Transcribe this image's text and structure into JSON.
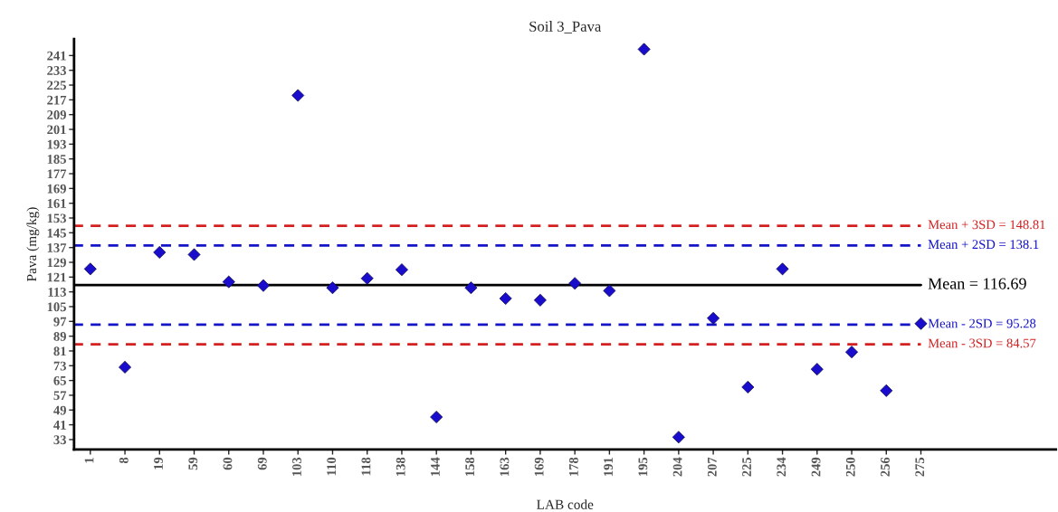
{
  "chart_data": {
    "type": "scatter",
    "title": "Soil 3_Pava",
    "xlabel": "LAB code",
    "ylabel": "Pava (mg/kg)",
    "categories": [
      "1",
      "8",
      "19",
      "59",
      "60",
      "69",
      "103",
      "110",
      "118",
      "138",
      "144",
      "158",
      "163",
      "169",
      "178",
      "191",
      "195",
      "204",
      "207",
      "225",
      "234",
      "249",
      "250",
      "256",
      "275"
    ],
    "series": [
      {
        "color": "#1a0ccc",
        "values": [
          125.4,
          72.2,
          134.4,
          133.2,
          118.4,
          116.4,
          219.4,
          115.2,
          120.3,
          125.0,
          45.2,
          115.2,
          109.4,
          108.5,
          117.6,
          113.6,
          244.4,
          34.3,
          98.7,
          61.4,
          125.4,
          71.1,
          80.4,
          59.5,
          95.8
        ]
      }
    ],
    "marker": "diamond",
    "grid": false,
    "legend": false,
    "ylim": [
      27.6,
      250
    ],
    "yticks": [
      33,
      41,
      49,
      57,
      65,
      73,
      81,
      89,
      97,
      105,
      113,
      121,
      129,
      137,
      145,
      153,
      161,
      169,
      177,
      185,
      193,
      201,
      209,
      217,
      225,
      233,
      241
    ],
    "ref_lines": [
      {
        "axis": "y",
        "value": 148.81,
        "label": "Mean + 3SD = 148.81",
        "color": "#d42020",
        "line_style": "dashed"
      },
      {
        "axis": "y",
        "value": 138.1,
        "label": "Mean + 2SD = 138.1",
        "color": "#1414c8",
        "line_style": "dashed"
      },
      {
        "axis": "y",
        "value": 116.69,
        "label": "Mean = 116.69",
        "color": "#000000",
        "line_style": "solid"
      },
      {
        "axis": "y",
        "value": 95.28,
        "label": "Mean - 2SD = 95.28",
        "color": "#1414c8",
        "line_style": "dashed"
      },
      {
        "axis": "y",
        "value": 84.57,
        "label": "Mean - 3SD = 84.57",
        "color": "#d42020",
        "line_style": "dashed"
      }
    ]
  }
}
